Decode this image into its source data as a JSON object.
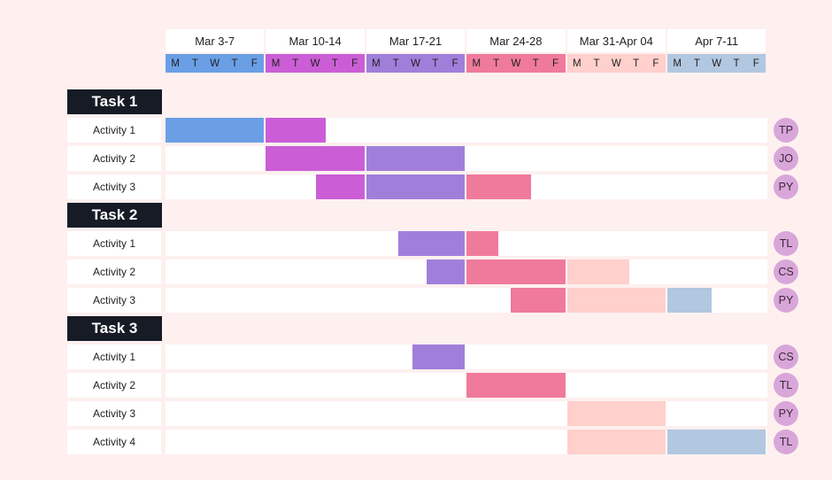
{
  "chart_data": {
    "type": "gantt",
    "weeks": [
      {
        "label": "Mar 3-7",
        "color": "#6a9fe6"
      },
      {
        "label": "Mar 10-14",
        "color": "#cb5ed6"
      },
      {
        "label": "Mar 17-21",
        "color": "#a07fdb"
      },
      {
        "label": "Mar 24-28",
        "color": "#f07a9c"
      },
      {
        "label": "Mar 31-Apr 04",
        "color": "#ffd0cc"
      },
      {
        "label": "Apr 7-11",
        "color": "#b2c7e0"
      }
    ],
    "days": [
      "M",
      "T",
      "W",
      "T",
      "F"
    ],
    "tasks": [
      {
        "label": "Task 1",
        "activities": [
          {
            "label": "Activity 1",
            "assignee": "TP",
            "start_day": 0,
            "end_day": 8
          },
          {
            "label": "Activity 2",
            "assignee": "JO",
            "start_day": 5,
            "end_day": 15
          },
          {
            "label": "Activity 3",
            "assignee": "PY",
            "start_day": 7.5,
            "end_day": 18.2
          }
        ]
      },
      {
        "label": "Task 2",
        "activities": [
          {
            "label": "Activity 1",
            "assignee": "TL",
            "start_day": 11.6,
            "end_day": 16.6
          },
          {
            "label": "Activity 2",
            "assignee": "CS",
            "start_day": 13,
            "end_day": 23.1
          },
          {
            "label": "Activity 3",
            "assignee": "PY",
            "start_day": 17.2,
            "end_day": 27.2
          }
        ]
      },
      {
        "label": "Task 3",
        "activities": [
          {
            "label": "Activity 1",
            "assignee": "CS",
            "start_day": 12.3,
            "end_day": 15
          },
          {
            "label": "Activity 2",
            "assignee": "TL",
            "start_day": 15,
            "end_day": 20
          },
          {
            "label": "Activity 3",
            "assignee": "PY",
            "start_day": 20,
            "end_day": 25
          },
          {
            "label": "Activity 4",
            "assignee": "TL",
            "start_day": 20,
            "end_day": 30
          }
        ]
      }
    ]
  }
}
